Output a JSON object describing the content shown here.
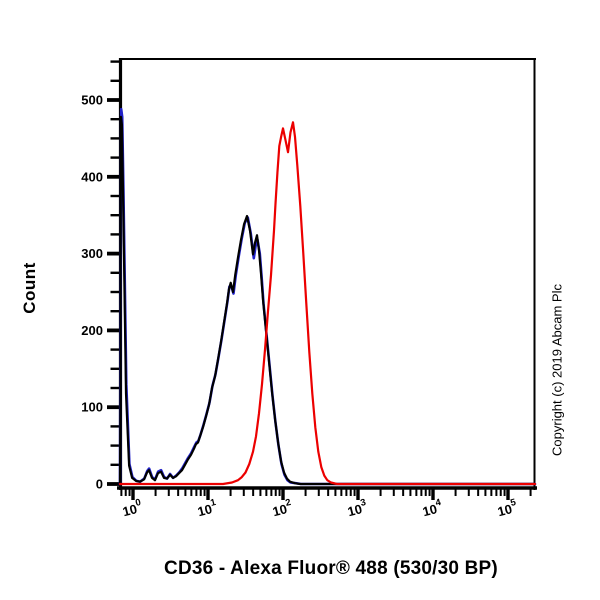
{
  "page": {
    "background": "#ffffff"
  },
  "labels": {
    "title": "CD36 - Alexa Fluor® 488 (530/30 BP)",
    "y_axis": "Count",
    "copyright": "Copyright (c) 2019 Abcam Plc"
  },
  "colors": {
    "axis": "#000000",
    "blue_curve": "#2121c8",
    "black_curve": "#000000",
    "red_curve": "#ec0000"
  },
  "chart_data": {
    "type": "line",
    "title": "CD36 - Alexa Fluor® 488 (530/30 BP)",
    "xlabel": "CD36 - Alexa Fluor® 488 (530/30 BP)",
    "ylabel": "Count",
    "x_scale": "log10",
    "xlim_log10": [
      -0.173,
      5.36
    ],
    "ylim": [
      0,
      553
    ],
    "y_major_ticks": [
      0,
      100,
      200,
      300,
      400,
      500
    ],
    "y_minor_step": 25,
    "x_ticks_exponents": [
      0,
      1,
      2,
      3,
      4,
      5
    ],
    "x_tick_base": "10",
    "grid": false,
    "legend": "none",
    "series": [
      {
        "name": "blue",
        "color_key": "blue_curve",
        "points": [
          [
            -0.173,
            0
          ],
          [
            -0.168,
            180
          ],
          [
            -0.157,
            488
          ],
          [
            -0.144,
            478
          ],
          [
            -0.128,
            385
          ],
          [
            -0.09,
            130
          ],
          [
            -0.048,
            26
          ],
          [
            -0.008,
            9
          ],
          [
            0.045,
            4
          ],
          [
            0.095,
            3
          ],
          [
            0.15,
            7
          ],
          [
            0.19,
            17
          ],
          [
            0.215,
            20
          ],
          [
            0.255,
            9
          ],
          [
            0.295,
            6
          ],
          [
            0.335,
            16
          ],
          [
            0.375,
            18
          ],
          [
            0.415,
            9
          ],
          [
            0.455,
            7
          ],
          [
            0.495,
            13
          ],
          [
            0.535,
            8
          ],
          [
            0.575,
            11
          ],
          [
            0.615,
            15
          ],
          [
            0.655,
            20
          ],
          [
            0.695,
            27
          ],
          [
            0.735,
            34
          ],
          [
            0.775,
            40
          ],
          [
            0.815,
            48
          ],
          [
            0.845,
            54
          ],
          [
            0.87,
            56
          ],
          [
            0.9,
            64
          ],
          [
            0.94,
            77
          ],
          [
            0.98,
            91
          ],
          [
            1.02,
            106
          ],
          [
            1.06,
            128
          ],
          [
            1.1,
            143
          ],
          [
            1.14,
            165
          ],
          [
            1.18,
            188
          ],
          [
            1.22,
            213
          ],
          [
            1.26,
            238
          ],
          [
            1.285,
            257
          ],
          [
            1.31,
            258
          ],
          [
            1.34,
            248
          ],
          [
            1.37,
            272
          ],
          [
            1.41,
            297
          ],
          [
            1.45,
            320
          ],
          [
            1.49,
            340
          ],
          [
            1.53,
            347
          ],
          [
            1.57,
            326
          ],
          [
            1.61,
            294
          ],
          [
            1.635,
            310
          ],
          [
            1.66,
            318
          ],
          [
            1.69,
            300
          ],
          [
            1.715,
            270
          ],
          [
            1.74,
            235
          ],
          [
            1.78,
            195
          ],
          [
            1.82,
            155
          ],
          [
            1.86,
            115
          ],
          [
            1.9,
            80
          ],
          [
            1.94,
            50
          ],
          [
            1.98,
            26
          ],
          [
            2.02,
            12
          ],
          [
            2.06,
            5
          ],
          [
            2.1,
            2
          ],
          [
            2.17,
            1
          ],
          [
            2.24,
            0
          ],
          [
            5.36,
            0
          ]
        ]
      },
      {
        "name": "black",
        "color_key": "black_curve",
        "points": [
          [
            -0.173,
            0
          ],
          [
            -0.168,
            110
          ],
          [
            -0.161,
            478
          ],
          [
            -0.148,
            468
          ],
          [
            -0.132,
            375
          ],
          [
            -0.093,
            118
          ],
          [
            -0.052,
            24
          ],
          [
            -0.012,
            8
          ],
          [
            0.04,
            4
          ],
          [
            0.093,
            3
          ],
          [
            0.147,
            6
          ],
          [
            0.187,
            15
          ],
          [
            0.213,
            18
          ],
          [
            0.253,
            8
          ],
          [
            0.293,
            5
          ],
          [
            0.333,
            14
          ],
          [
            0.373,
            16
          ],
          [
            0.413,
            8
          ],
          [
            0.453,
            7
          ],
          [
            0.493,
            12
          ],
          [
            0.533,
            8
          ],
          [
            0.573,
            10
          ],
          [
            0.613,
            14
          ],
          [
            0.653,
            18
          ],
          [
            0.693,
            25
          ],
          [
            0.733,
            32
          ],
          [
            0.773,
            38
          ],
          [
            0.813,
            46
          ],
          [
            0.84,
            52
          ],
          [
            0.867,
            54
          ],
          [
            0.893,
            62
          ],
          [
            0.933,
            74
          ],
          [
            0.973,
            88
          ],
          [
            1.013,
            103
          ],
          [
            1.053,
            125
          ],
          [
            1.093,
            140
          ],
          [
            1.133,
            162
          ],
          [
            1.173,
            185
          ],
          [
            1.213,
            210
          ],
          [
            1.253,
            235
          ],
          [
            1.278,
            253
          ],
          [
            1.303,
            262
          ],
          [
            1.333,
            250
          ],
          [
            1.363,
            272
          ],
          [
            1.4,
            295
          ],
          [
            1.44,
            318
          ],
          [
            1.48,
            338
          ],
          [
            1.52,
            349
          ],
          [
            1.56,
            330
          ],
          [
            1.6,
            299
          ],
          [
            1.627,
            314
          ],
          [
            1.653,
            324
          ],
          [
            1.68,
            304
          ],
          [
            1.707,
            274
          ],
          [
            1.733,
            240
          ],
          [
            1.773,
            200
          ],
          [
            1.813,
            160
          ],
          [
            1.853,
            120
          ],
          [
            1.893,
            85
          ],
          [
            1.933,
            55
          ],
          [
            1.973,
            30
          ],
          [
            2.013,
            15
          ],
          [
            2.053,
            7
          ],
          [
            2.093,
            3
          ],
          [
            2.16,
            1
          ],
          [
            2.23,
            0
          ],
          [
            5.36,
            0
          ]
        ]
      },
      {
        "name": "red",
        "color_key": "red_curve",
        "points": [
          [
            -0.173,
            0
          ],
          [
            1.2,
            0
          ],
          [
            1.32,
            2
          ],
          [
            1.4,
            5
          ],
          [
            1.45,
            9
          ],
          [
            1.5,
            15
          ],
          [
            1.55,
            26
          ],
          [
            1.6,
            42
          ],
          [
            1.64,
            62
          ],
          [
            1.68,
            92
          ],
          [
            1.72,
            130
          ],
          [
            1.76,
            175
          ],
          [
            1.8,
            225
          ],
          [
            1.84,
            272
          ],
          [
            1.88,
            330
          ],
          [
            1.9,
            365
          ],
          [
            1.925,
            405
          ],
          [
            1.95,
            440
          ],
          [
            1.975,
            452
          ],
          [
            2.0,
            463
          ],
          [
            2.03,
            449
          ],
          [
            2.067,
            432
          ],
          [
            2.1,
            458
          ],
          [
            2.133,
            471
          ],
          [
            2.16,
            452
          ],
          [
            2.19,
            415
          ],
          [
            2.23,
            362
          ],
          [
            2.27,
            300
          ],
          [
            2.31,
            235
          ],
          [
            2.35,
            172
          ],
          [
            2.39,
            118
          ],
          [
            2.43,
            74
          ],
          [
            2.47,
            42
          ],
          [
            2.51,
            22
          ],
          [
            2.55,
            11
          ],
          [
            2.59,
            5
          ],
          [
            2.64,
            2
          ],
          [
            2.72,
            0
          ],
          [
            5.36,
            0
          ]
        ]
      }
    ]
  }
}
